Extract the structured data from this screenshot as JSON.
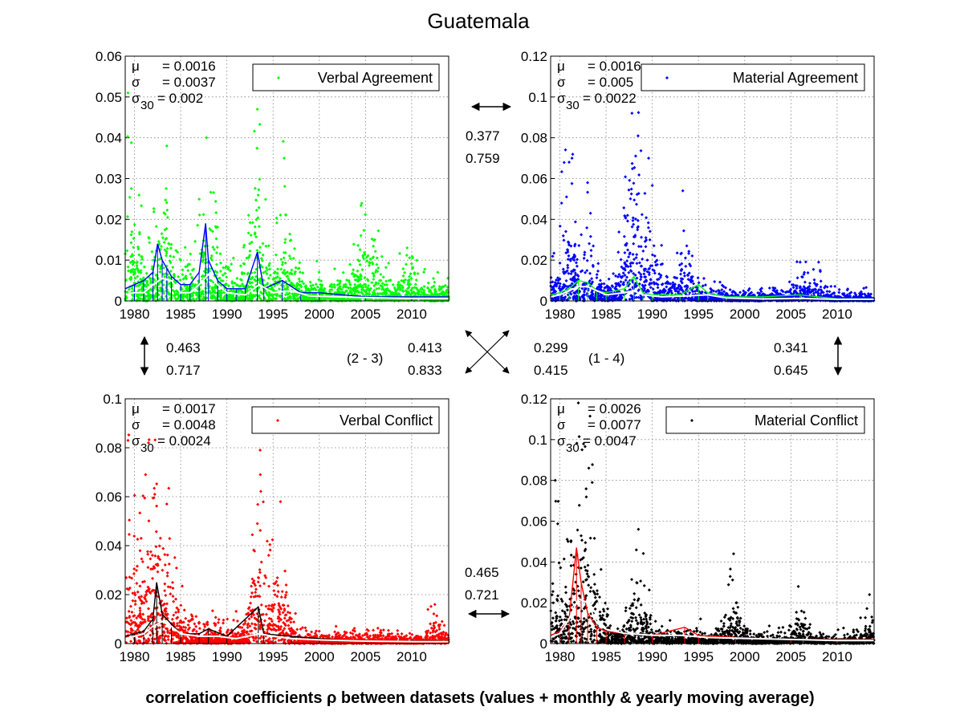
{
  "figure": {
    "title": "Guatemala",
    "footer": "correlation coefficients ρ between datasets (values + monthly & yearly moving average)"
  },
  "chart_data": [
    {
      "type": "scatter",
      "title": "",
      "xlabel": "",
      "ylabel": "",
      "xlim": [
        1979,
        2014
      ],
      "ylim": [
        0,
        0.06
      ],
      "yticks": [
        "0",
        "0.01",
        "0.02",
        "0.03",
        "0.04",
        "0.05",
        "0.06"
      ],
      "xticks": [
        "1980",
        "1985",
        "1990",
        "1995",
        "2000",
        "2005",
        "2010"
      ],
      "grid": true,
      "legend": {
        "label": "Verbal Agreement",
        "position": "top-right"
      },
      "stats": [
        {
          "symbol": "μ",
          "sub": "",
          "value": "= 0.0016"
        },
        {
          "symbol": "σ",
          "sub": "",
          "value": "= 0.0037"
        },
        {
          "symbol": "σ",
          "sub": "30",
          "value": "= 0.002"
        }
      ],
      "colors": {
        "points": "#00ff00",
        "monthly": "#0000ff",
        "yearly": "#ffffff"
      },
      "series": [
        {
          "name": "Verbal Agreement",
          "kind": "points",
          "seed": 11,
          "peaks": [
            {
              "year": 1983.5,
              "height": 0.038
            },
            {
              "year": 1987.8,
              "height": 0.04
            },
            {
              "year": 1993.3,
              "height": 0.047
            },
            {
              "year": 1996.2,
              "height": 0.035
            },
            {
              "year": 2004.5,
              "height": 0.016
            },
            {
              "year": 2006.0,
              "height": 0.015
            },
            {
              "year": 2009.5,
              "height": 0.013
            },
            {
              "year": 1979.3,
              "height": 0.051
            }
          ]
        }
      ],
      "monthly_avg": [
        [
          1979,
          0.003
        ],
        [
          1980,
          0.004
        ],
        [
          1981,
          0.005
        ],
        [
          1982,
          0.007
        ],
        [
          1982.5,
          0.014
        ],
        [
          1983,
          0.01
        ],
        [
          1983.5,
          0.008
        ],
        [
          1984,
          0.006
        ],
        [
          1985,
          0.004
        ],
        [
          1986,
          0.004
        ],
        [
          1987,
          0.007
        ],
        [
          1987.7,
          0.019
        ],
        [
          1988,
          0.01
        ],
        [
          1989,
          0.005
        ],
        [
          1990,
          0.003
        ],
        [
          1991,
          0.003
        ],
        [
          1992,
          0.003
        ],
        [
          1993.3,
          0.012
        ],
        [
          1994,
          0.003
        ],
        [
          1996,
          0.005
        ],
        [
          1998,
          0.002
        ],
        [
          2000,
          0.002
        ],
        [
          2005,
          0.001
        ],
        [
          2010,
          0.001
        ],
        [
          2014,
          0.001
        ]
      ],
      "yearly_avg": [
        [
          1979,
          0.0015
        ],
        [
          1980,
          0.002
        ],
        [
          1981,
          0.002
        ],
        [
          1982,
          0.004
        ],
        [
          1983,
          0.0055
        ],
        [
          1984,
          0.005
        ],
        [
          1985,
          0.002
        ],
        [
          1986,
          0.002
        ],
        [
          1987,
          0.004
        ],
        [
          1988,
          0.0065
        ],
        [
          1989,
          0.004
        ],
        [
          1990,
          0.002
        ],
        [
          1992,
          0.0015
        ],
        [
          1993.5,
          0.004
        ],
        [
          1995,
          0.002
        ],
        [
          1997,
          0.0025
        ],
        [
          1999,
          0.0012
        ],
        [
          2002,
          0.001
        ],
        [
          2005,
          0.0008
        ],
        [
          2010,
          0.0006
        ],
        [
          2014,
          0.0006
        ]
      ]
    },
    {
      "type": "scatter",
      "title": "",
      "xlabel": "",
      "ylabel": "",
      "xlim": [
        1979,
        2014
      ],
      "ylim": [
        0,
        0.12
      ],
      "yticks": [
        "0",
        "0.02",
        "0.04",
        "0.06",
        "0.08",
        "0.1",
        "0.12"
      ],
      "xticks": [
        "1980",
        "1985",
        "1990",
        "1995",
        "2000",
        "2005",
        "2010"
      ],
      "grid": true,
      "legend": {
        "label": "Material Agreement",
        "position": "top-right"
      },
      "stats": [
        {
          "symbol": "μ",
          "sub": "",
          "value": "= 0.0016"
        },
        {
          "symbol": "σ",
          "sub": "",
          "value": "= 0.005"
        },
        {
          "symbol": "σ",
          "sub": "30",
          "value": "= 0.0022"
        }
      ],
      "colors": {
        "points": "#0000ff",
        "monthly": "#00ff00",
        "yearly": "#ffffff"
      },
      "series": [
        {
          "name": "Material Agreement",
          "kind": "points",
          "seed": 23,
          "peaks": [
            {
              "year": 1981.0,
              "height": 0.068
            },
            {
              "year": 1983.0,
              "height": 0.058
            },
            {
              "year": 1987.8,
              "height": 0.092
            },
            {
              "year": 1988.2,
              "height": 0.071
            },
            {
              "year": 1989.6,
              "height": 0.07
            },
            {
              "year": 1993.3,
              "height": 0.054
            },
            {
              "year": 2006.0,
              "height": 0.019
            },
            {
              "year": 2008.0,
              "height": 0.019
            }
          ]
        }
      ],
      "monthly_avg": [
        [
          1979,
          0.003
        ],
        [
          1980,
          0.004
        ],
        [
          1981,
          0.006
        ],
        [
          1982,
          0.01
        ],
        [
          1983,
          0.009
        ],
        [
          1984,
          0.005
        ],
        [
          1985,
          0.004
        ],
        [
          1987,
          0.006
        ],
        [
          1988,
          0.012
        ],
        [
          1989,
          0.004
        ],
        [
          1990,
          0.003
        ],
        [
          1993,
          0.003
        ],
        [
          1995,
          0.008
        ],
        [
          1996,
          0.004
        ],
        [
          1998,
          0.002
        ],
        [
          2002,
          0.002
        ],
        [
          2006,
          0.003
        ],
        [
          2010,
          0.001
        ],
        [
          2014,
          0.001
        ]
      ],
      "yearly_avg": [
        [
          1979,
          0.002
        ],
        [
          1980,
          0.003
        ],
        [
          1981,
          0.005
        ],
        [
          1982,
          0.007
        ],
        [
          1983,
          0.007
        ],
        [
          1984,
          0.005
        ],
        [
          1985,
          0.003
        ],
        [
          1987,
          0.004
        ],
        [
          1988,
          0.005
        ],
        [
          1989,
          0.003
        ],
        [
          1991,
          0.002
        ],
        [
          1994,
          0.0025
        ],
        [
          1996,
          0.003
        ],
        [
          1998,
          0.0015
        ],
        [
          2002,
          0.001
        ],
        [
          2006,
          0.0012
        ],
        [
          2010,
          0.0008
        ],
        [
          2014,
          0.0008
        ]
      ]
    },
    {
      "type": "scatter",
      "title": "",
      "xlabel": "",
      "ylabel": "",
      "xlim": [
        1979,
        2014
      ],
      "ylim": [
        0,
        0.1
      ],
      "yticks": [
        "0",
        "0.02",
        "0.04",
        "0.06",
        "0.08",
        "0.1"
      ],
      "xticks": [
        "1980",
        "1985",
        "1990",
        "1995",
        "2000",
        "2005",
        "2010"
      ],
      "grid": true,
      "legend": {
        "label": "Verbal Conflict",
        "position": "top-right"
      },
      "stats": [
        {
          "symbol": "μ",
          "sub": "",
          "value": "= 0.0017"
        },
        {
          "symbol": "σ",
          "sub": "",
          "value": "= 0.0048"
        },
        {
          "symbol": "σ",
          "sub": "30",
          "value": "= 0.0024"
        }
      ],
      "colors": {
        "points": "#ff0000",
        "monthly": "#000000",
        "yearly": "#ffffff"
      },
      "series": [
        {
          "name": "Verbal Conflict",
          "kind": "points",
          "seed": 37,
          "peaks": [
            {
              "year": 1979.3,
              "height": 0.083
            },
            {
              "year": 1981.2,
              "height": 0.069
            },
            {
              "year": 1982.2,
              "height": 0.061
            },
            {
              "year": 1983.5,
              "height": 0.057
            },
            {
              "year": 1993.3,
              "height": 0.049
            },
            {
              "year": 1993.6,
              "height": 0.079
            },
            {
              "year": 1995.8,
              "height": 0.058
            },
            {
              "year": 2012.5,
              "height": 0.016
            }
          ]
        }
      ],
      "monthly_avg": [
        [
          1979,
          0.003
        ],
        [
          1980,
          0.004
        ],
        [
          1981,
          0.005
        ],
        [
          1982,
          0.01
        ],
        [
          1982.4,
          0.025
        ],
        [
          1983,
          0.012
        ],
        [
          1984,
          0.008
        ],
        [
          1985,
          0.004
        ],
        [
          1987,
          0.004
        ],
        [
          1988,
          0.006
        ],
        [
          1990,
          0.003
        ],
        [
          1993.4,
          0.015
        ],
        [
          1994,
          0.004
        ],
        [
          1997,
          0.003
        ],
        [
          2000,
          0.002
        ],
        [
          2005,
          0.001
        ],
        [
          2010,
          0.001
        ],
        [
          2014,
          0.001
        ]
      ],
      "yearly_avg": [
        [
          1979,
          0.002
        ],
        [
          1980,
          0.003
        ],
        [
          1981,
          0.004
        ],
        [
          1982,
          0.007
        ],
        [
          1983,
          0.009
        ],
        [
          1984,
          0.007
        ],
        [
          1985,
          0.004
        ],
        [
          1987,
          0.003
        ],
        [
          1989,
          0.003
        ],
        [
          1991,
          0.002
        ],
        [
          1993.5,
          0.004
        ],
        [
          1995,
          0.003
        ],
        [
          1997,
          0.002
        ],
        [
          2000,
          0.0015
        ],
        [
          2005,
          0.001
        ],
        [
          2010,
          0.0008
        ],
        [
          2014,
          0.0008
        ]
      ]
    },
    {
      "type": "scatter",
      "title": "",
      "xlabel": "",
      "ylabel": "",
      "xlim": [
        1979,
        2014
      ],
      "ylim": [
        0,
        0.12
      ],
      "yticks": [
        "0",
        "0.02",
        "0.04",
        "0.06",
        "0.08",
        "0.1",
        "0.12"
      ],
      "xticks": [
        "1980",
        "1985",
        "1990",
        "1995",
        "2000",
        "2005",
        "2010"
      ],
      "grid": true,
      "legend": {
        "label": "Material Conflict",
        "position": "top-right"
      },
      "stats": [
        {
          "symbol": "μ",
          "sub": "",
          "value": "= 0.0026"
        },
        {
          "symbol": "σ",
          "sub": "",
          "value": "= 0.0077"
        },
        {
          "symbol": "σ",
          "sub": "30",
          "value": "= 0.0047"
        }
      ],
      "colors": {
        "points": "#000000",
        "monthly": "#ff0000",
        "yearly": "#ffffff"
      },
      "series": [
        {
          "name": "Material Conflict",
          "kind": "points",
          "seed": 53,
          "peaks": [
            {
              "year": 1982.0,
              "height": 0.118
            },
            {
              "year": 1982.4,
              "height": 0.095
            },
            {
              "year": 1979.5,
              "height": 0.08
            },
            {
              "year": 1983.5,
              "height": 0.079
            },
            {
              "year": 1988.5,
              "height": 0.056
            },
            {
              "year": 1998.8,
              "height": 0.044
            },
            {
              "year": 2005.8,
              "height": 0.028
            },
            {
              "year": 2013.5,
              "height": 0.024
            }
          ]
        }
      ],
      "monthly_avg": [
        [
          1979,
          0.004
        ],
        [
          1980,
          0.006
        ],
        [
          1981,
          0.012
        ],
        [
          1981.8,
          0.047
        ],
        [
          1982.3,
          0.03
        ],
        [
          1983,
          0.015
        ],
        [
          1984,
          0.008
        ],
        [
          1985,
          0.006
        ],
        [
          1987,
          0.005
        ],
        [
          1990,
          0.004
        ],
        [
          1993.5,
          0.008
        ],
        [
          1995,
          0.004
        ],
        [
          1999,
          0.003
        ],
        [
          2005,
          0.002
        ],
        [
          2010,
          0.002
        ],
        [
          2014,
          0.002
        ]
      ],
      "yearly_avg": [
        [
          1979,
          0.003
        ],
        [
          1980,
          0.005
        ],
        [
          1981,
          0.012
        ],
        [
          1982,
          0.022
        ],
        [
          1983,
          0.02
        ],
        [
          1984,
          0.01
        ],
        [
          1985,
          0.007
        ],
        [
          1987,
          0.005
        ],
        [
          1990,
          0.004
        ],
        [
          1993,
          0.004
        ],
        [
          1996,
          0.003
        ],
        [
          2000,
          0.0025
        ],
        [
          2005,
          0.002
        ],
        [
          2010,
          0.0015
        ],
        [
          2014,
          0.0015
        ]
      ]
    }
  ],
  "correlations": [
    {
      "id": "top",
      "v1": "0.377",
      "v2": "0.759"
    },
    {
      "id": "left",
      "v1": "0.463",
      "v2": "0.717"
    },
    {
      "id": "diag-2-3",
      "v1": "0.413",
      "v2": "0.833",
      "label": "(2 - 3)"
    },
    {
      "id": "diag-1-4",
      "v1": "0.299",
      "v2": "0.415",
      "label": "(1 - 4)"
    },
    {
      "id": "right",
      "v1": "0.341",
      "v2": "0.645"
    },
    {
      "id": "bottom",
      "v1": "0.465",
      "v2": "0.721"
    }
  ]
}
